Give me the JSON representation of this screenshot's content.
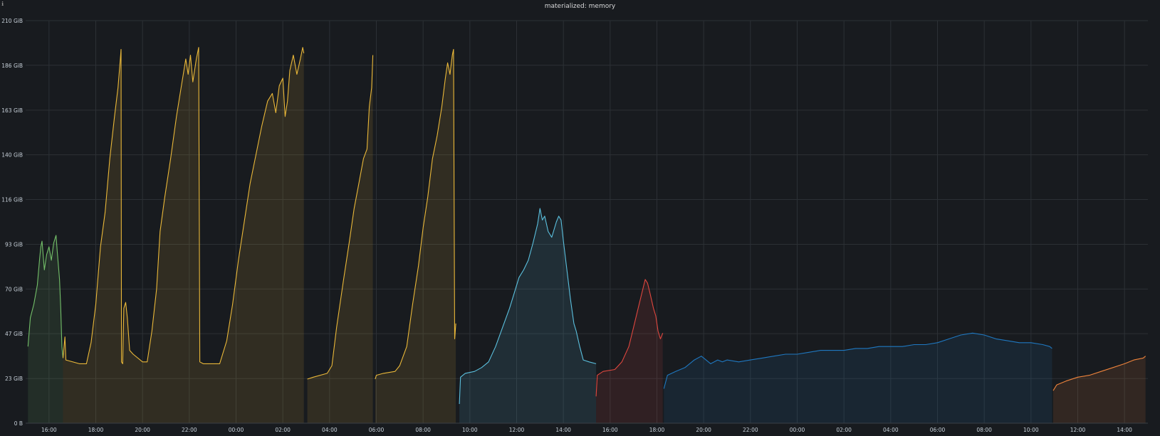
{
  "panel": {
    "title": "materialized: memory",
    "info_icon": "info-icon"
  },
  "chart_data": {
    "type": "area",
    "title": "materialized: memory",
    "xlabel": "",
    "ylabel": "",
    "ylim": [
      0,
      210
    ],
    "y_unit": "GiB",
    "y_ticks": [
      {
        "value": 0,
        "label": "0 B"
      },
      {
        "value": 23.3,
        "label": "23 GiB"
      },
      {
        "value": 46.7,
        "label": "47 GiB"
      },
      {
        "value": 70,
        "label": "70 GiB"
      },
      {
        "value": 93.3,
        "label": "93 GiB"
      },
      {
        "value": 116.7,
        "label": "116 GiB"
      },
      {
        "value": 140,
        "label": "140 GiB"
      },
      {
        "value": 163.3,
        "label": "163 GiB"
      },
      {
        "value": 186.7,
        "label": "186 GiB"
      },
      {
        "value": 210,
        "label": "210 GiB"
      }
    ],
    "x_unit": "hours from 15:00",
    "xlim": [
      0,
      48
    ],
    "x_ticks": [
      {
        "value": 1,
        "label": "16:00"
      },
      {
        "value": 3,
        "label": "18:00"
      },
      {
        "value": 5,
        "label": "20:00"
      },
      {
        "value": 7,
        "label": "22:00"
      },
      {
        "value": 9,
        "label": "00:00"
      },
      {
        "value": 11,
        "label": "02:00"
      },
      {
        "value": 13,
        "label": "04:00"
      },
      {
        "value": 15,
        "label": "06:00"
      },
      {
        "value": 17,
        "label": "08:00"
      },
      {
        "value": 19,
        "label": "10:00"
      },
      {
        "value": 21,
        "label": "12:00"
      },
      {
        "value": 23,
        "label": "14:00"
      },
      {
        "value": 25,
        "label": "16:00"
      },
      {
        "value": 27,
        "label": "18:00"
      },
      {
        "value": 29,
        "label": "20:00"
      },
      {
        "value": 31,
        "label": "22:00"
      },
      {
        "value": 33,
        "label": "00:00"
      },
      {
        "value": 35,
        "label": "02:00"
      },
      {
        "value": 37,
        "label": "04:00"
      },
      {
        "value": 39,
        "label": "06:00"
      },
      {
        "value": 41,
        "label": "08:00"
      },
      {
        "value": 43,
        "label": "10:00"
      },
      {
        "value": 45,
        "label": "12:00"
      },
      {
        "value": 47,
        "label": "14:00"
      }
    ],
    "grid": true,
    "legend": "none",
    "series": [
      {
        "color": "#73bf69",
        "points": [
          [
            0.1,
            40
          ],
          [
            0.2,
            55
          ],
          [
            0.35,
            62
          ],
          [
            0.5,
            72
          ],
          [
            0.6,
            86
          ],
          [
            0.65,
            92
          ],
          [
            0.7,
            95
          ],
          [
            0.8,
            80
          ],
          [
            0.9,
            88
          ],
          [
            1.0,
            92
          ],
          [
            1.1,
            85
          ],
          [
            1.2,
            94
          ],
          [
            1.3,
            98
          ],
          [
            1.35,
            90
          ],
          [
            1.45,
            75
          ],
          [
            1.5,
            60
          ],
          [
            1.55,
            40
          ],
          [
            1.6,
            34
          ]
        ]
      },
      {
        "color": "#eab839",
        "points": [
          [
            1.6,
            34
          ],
          [
            1.68,
            45
          ],
          [
            1.72,
            33
          ],
          [
            2.3,
            31
          ],
          [
            2.6,
            31
          ],
          [
            2.8,
            42
          ],
          [
            3.0,
            62
          ],
          [
            3.2,
            92
          ],
          [
            3.4,
            110
          ],
          [
            3.6,
            138
          ],
          [
            3.8,
            160
          ],
          [
            3.95,
            175
          ],
          [
            4.05,
            190
          ],
          [
            4.08,
            195
          ],
          [
            4.1,
            32
          ],
          [
            4.15,
            31
          ],
          [
            4.2,
            60
          ],
          [
            4.28,
            63
          ],
          [
            4.35,
            55
          ],
          [
            4.45,
            38
          ],
          [
            4.6,
            36
          ],
          [
            5.0,
            32
          ],
          [
            5.2,
            32
          ],
          [
            5.4,
            48
          ],
          [
            5.6,
            70
          ],
          [
            5.75,
            100
          ],
          [
            5.95,
            118
          ],
          [
            6.2,
            138
          ],
          [
            6.45,
            160
          ],
          [
            6.65,
            175
          ],
          [
            6.85,
            190
          ],
          [
            6.95,
            182
          ],
          [
            7.05,
            192
          ],
          [
            7.15,
            178
          ],
          [
            7.3,
            190
          ],
          [
            7.4,
            196
          ],
          [
            7.45,
            32
          ],
          [
            7.6,
            31
          ],
          [
            8.3,
            31
          ],
          [
            8.6,
            43
          ],
          [
            8.85,
            62
          ],
          [
            9.1,
            85
          ],
          [
            9.35,
            105
          ],
          [
            9.6,
            125
          ],
          [
            9.85,
            140
          ],
          [
            10.1,
            155
          ],
          [
            10.35,
            168
          ],
          [
            10.55,
            172
          ],
          [
            10.7,
            162
          ],
          [
            10.85,
            176
          ],
          [
            11.0,
            180
          ],
          [
            11.1,
            160
          ],
          [
            11.2,
            168
          ],
          [
            11.3,
            184
          ],
          [
            11.45,
            192
          ],
          [
            11.6,
            182
          ],
          [
            11.75,
            190
          ],
          [
            11.85,
            196
          ],
          [
            11.9,
            193
          ]
        ]
      },
      {
        "color": "#eab839",
        "points": [
          [
            12.05,
            23
          ],
          [
            12.3,
            24
          ],
          [
            12.9,
            26
          ],
          [
            13.1,
            30
          ],
          [
            13.3,
            50
          ],
          [
            13.6,
            75
          ],
          [
            13.85,
            95
          ],
          [
            14.05,
            112
          ],
          [
            14.25,
            125
          ],
          [
            14.45,
            138
          ],
          [
            14.6,
            143
          ],
          [
            14.7,
            165
          ],
          [
            14.8,
            175
          ],
          [
            14.85,
            192
          ]
        ]
      },
      {
        "color": "#eab839",
        "points": [
          [
            14.95,
            23
          ],
          [
            15.0,
            25
          ],
          [
            15.3,
            26
          ],
          [
            15.8,
            27
          ],
          [
            16.0,
            30
          ],
          [
            16.3,
            40
          ],
          [
            16.55,
            62
          ],
          [
            16.8,
            82
          ],
          [
            17.0,
            102
          ],
          [
            17.2,
            118
          ],
          [
            17.4,
            138
          ],
          [
            17.6,
            150
          ],
          [
            17.8,
            165
          ],
          [
            17.95,
            180
          ],
          [
            18.05,
            188
          ],
          [
            18.15,
            182
          ],
          [
            18.25,
            192
          ],
          [
            18.3,
            195
          ],
          [
            18.35,
            44
          ],
          [
            18.4,
            52
          ]
        ]
      },
      {
        "color": "#5bc0de",
        "points": [
          [
            18.55,
            10
          ],
          [
            18.6,
            24
          ],
          [
            18.8,
            26
          ],
          [
            19.2,
            27
          ],
          [
            19.5,
            29
          ],
          [
            19.8,
            32
          ],
          [
            20.1,
            40
          ],
          [
            20.4,
            50
          ],
          [
            20.7,
            60
          ],
          [
            20.95,
            70
          ],
          [
            21.1,
            76
          ],
          [
            21.3,
            80
          ],
          [
            21.5,
            85
          ],
          [
            21.7,
            94
          ],
          [
            21.9,
            104
          ],
          [
            22.0,
            112
          ],
          [
            22.1,
            106
          ],
          [
            22.2,
            108
          ],
          [
            22.35,
            100
          ],
          [
            22.5,
            97
          ],
          [
            22.7,
            105
          ],
          [
            22.8,
            108
          ],
          [
            22.9,
            106
          ],
          [
            23.0,
            95
          ],
          [
            23.15,
            80
          ],
          [
            23.3,
            65
          ],
          [
            23.45,
            52
          ],
          [
            23.55,
            48
          ],
          [
            23.7,
            40
          ],
          [
            23.85,
            33
          ],
          [
            24.1,
            32
          ],
          [
            24.4,
            31
          ]
        ]
      },
      {
        "color": "#e0473f",
        "points": [
          [
            24.4,
            14
          ],
          [
            24.45,
            25
          ],
          [
            24.7,
            27
          ],
          [
            25.2,
            28
          ],
          [
            25.5,
            32
          ],
          [
            25.8,
            40
          ],
          [
            26.0,
            50
          ],
          [
            26.2,
            60
          ],
          [
            26.4,
            70
          ],
          [
            26.5,
            75
          ],
          [
            26.6,
            73
          ],
          [
            26.7,
            68
          ],
          [
            26.85,
            60
          ],
          [
            26.95,
            56
          ],
          [
            27.05,
            48
          ],
          [
            27.15,
            44
          ],
          [
            27.25,
            47
          ]
        ]
      },
      {
        "color": "#1f78c1",
        "points": [
          [
            27.3,
            18
          ],
          [
            27.45,
            25
          ],
          [
            27.8,
            27
          ],
          [
            28.2,
            29
          ],
          [
            28.6,
            33
          ],
          [
            28.9,
            35
          ],
          [
            29.3,
            31
          ],
          [
            29.6,
            33
          ],
          [
            29.8,
            32
          ],
          [
            30.0,
            33
          ],
          [
            30.5,
            32
          ],
          [
            31.0,
            33
          ],
          [
            31.5,
            34
          ],
          [
            32.0,
            35
          ],
          [
            32.5,
            36
          ],
          [
            33.0,
            36
          ],
          [
            33.5,
            37
          ],
          [
            34.0,
            38
          ],
          [
            34.5,
            38
          ],
          [
            35.0,
            38
          ],
          [
            35.5,
            39
          ],
          [
            36.0,
            39
          ],
          [
            36.5,
            40
          ],
          [
            37.0,
            40
          ],
          [
            37.5,
            40
          ],
          [
            38.0,
            41
          ],
          [
            38.5,
            41
          ],
          [
            39.0,
            42
          ],
          [
            39.5,
            44
          ],
          [
            40.0,
            46
          ],
          [
            40.5,
            47
          ],
          [
            41.0,
            46
          ],
          [
            41.5,
            44
          ],
          [
            42.0,
            43
          ],
          [
            42.5,
            42
          ],
          [
            43.0,
            42
          ],
          [
            43.5,
            41
          ],
          [
            43.8,
            40
          ],
          [
            43.9,
            39
          ]
        ]
      },
      {
        "color": "#ef843c",
        "points": [
          [
            43.95,
            17
          ],
          [
            44.1,
            20
          ],
          [
            44.5,
            22
          ],
          [
            45.0,
            24
          ],
          [
            45.5,
            25
          ],
          [
            46.0,
            27
          ],
          [
            46.5,
            29
          ],
          [
            47.0,
            31
          ],
          [
            47.4,
            33
          ],
          [
            47.8,
            34
          ],
          [
            47.9,
            35
          ]
        ]
      }
    ]
  }
}
